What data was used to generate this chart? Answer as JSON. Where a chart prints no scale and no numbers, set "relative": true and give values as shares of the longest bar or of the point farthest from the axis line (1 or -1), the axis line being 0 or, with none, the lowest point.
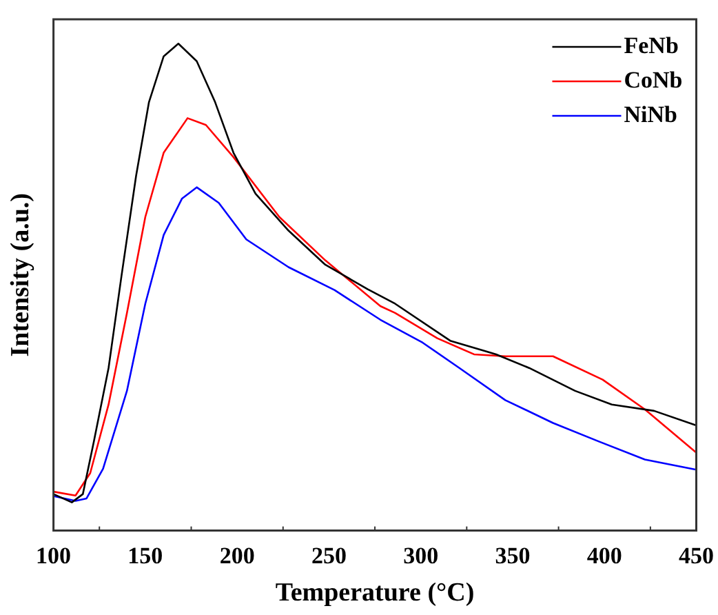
{
  "chart_data": {
    "type": "line",
    "relative": true,
    "xlabel": "Temperature (°C)",
    "ylabel": "Intensity (a.u.)",
    "xlim": [
      100,
      450
    ],
    "xticks": [
      100,
      150,
      200,
      250,
      300,
      350,
      400,
      450
    ],
    "legend": "top right",
    "marker": "none",
    "line_style": "solid",
    "grid": false,
    "series": [
      {
        "name": "FeNb",
        "color": "#000000",
        "x": [
          100,
          110,
          116,
          122,
          130,
          137,
          145,
          152,
          160,
          168,
          178,
          188,
          198,
          210,
          228,
          248,
          271,
          286,
          316,
          341,
          359,
          384,
          404,
          427,
          450
        ],
        "values": [
          0.075,
          0.058,
          0.075,
          0.183,
          0.334,
          0.522,
          0.729,
          0.88,
          0.974,
          1.0,
          0.964,
          0.88,
          0.776,
          0.692,
          0.616,
          0.546,
          0.496,
          0.466,
          0.39,
          0.362,
          0.334,
          0.287,
          0.259,
          0.246,
          0.216
        ]
      },
      {
        "name": "CoNb",
        "color": "#ff0000",
        "x": [
          100,
          112,
          120,
          130,
          140,
          150,
          160,
          173,
          183,
          198,
          223,
          248,
          278,
          286,
          309,
          329,
          346,
          372,
          399,
          422,
          450
        ],
        "values": [
          0.08,
          0.072,
          0.118,
          0.259,
          0.447,
          0.644,
          0.776,
          0.847,
          0.833,
          0.767,
          0.644,
          0.555,
          0.461,
          0.447,
          0.395,
          0.362,
          0.358,
          0.358,
          0.31,
          0.249,
          0.16
        ]
      },
      {
        "name": "NiNb",
        "color": "#0000ff",
        "x": [
          100,
          112,
          118,
          127,
          140,
          150,
          160,
          170,
          178,
          190,
          205,
          228,
          253,
          278,
          301,
          321,
          346,
          372,
          397,
          422,
          450
        ],
        "values": [
          0.071,
          0.061,
          0.066,
          0.127,
          0.287,
          0.466,
          0.607,
          0.682,
          0.705,
          0.673,
          0.598,
          0.541,
          0.494,
          0.433,
          0.386,
          0.334,
          0.268,
          0.221,
          0.183,
          0.146,
          0.125
        ]
      }
    ]
  }
}
